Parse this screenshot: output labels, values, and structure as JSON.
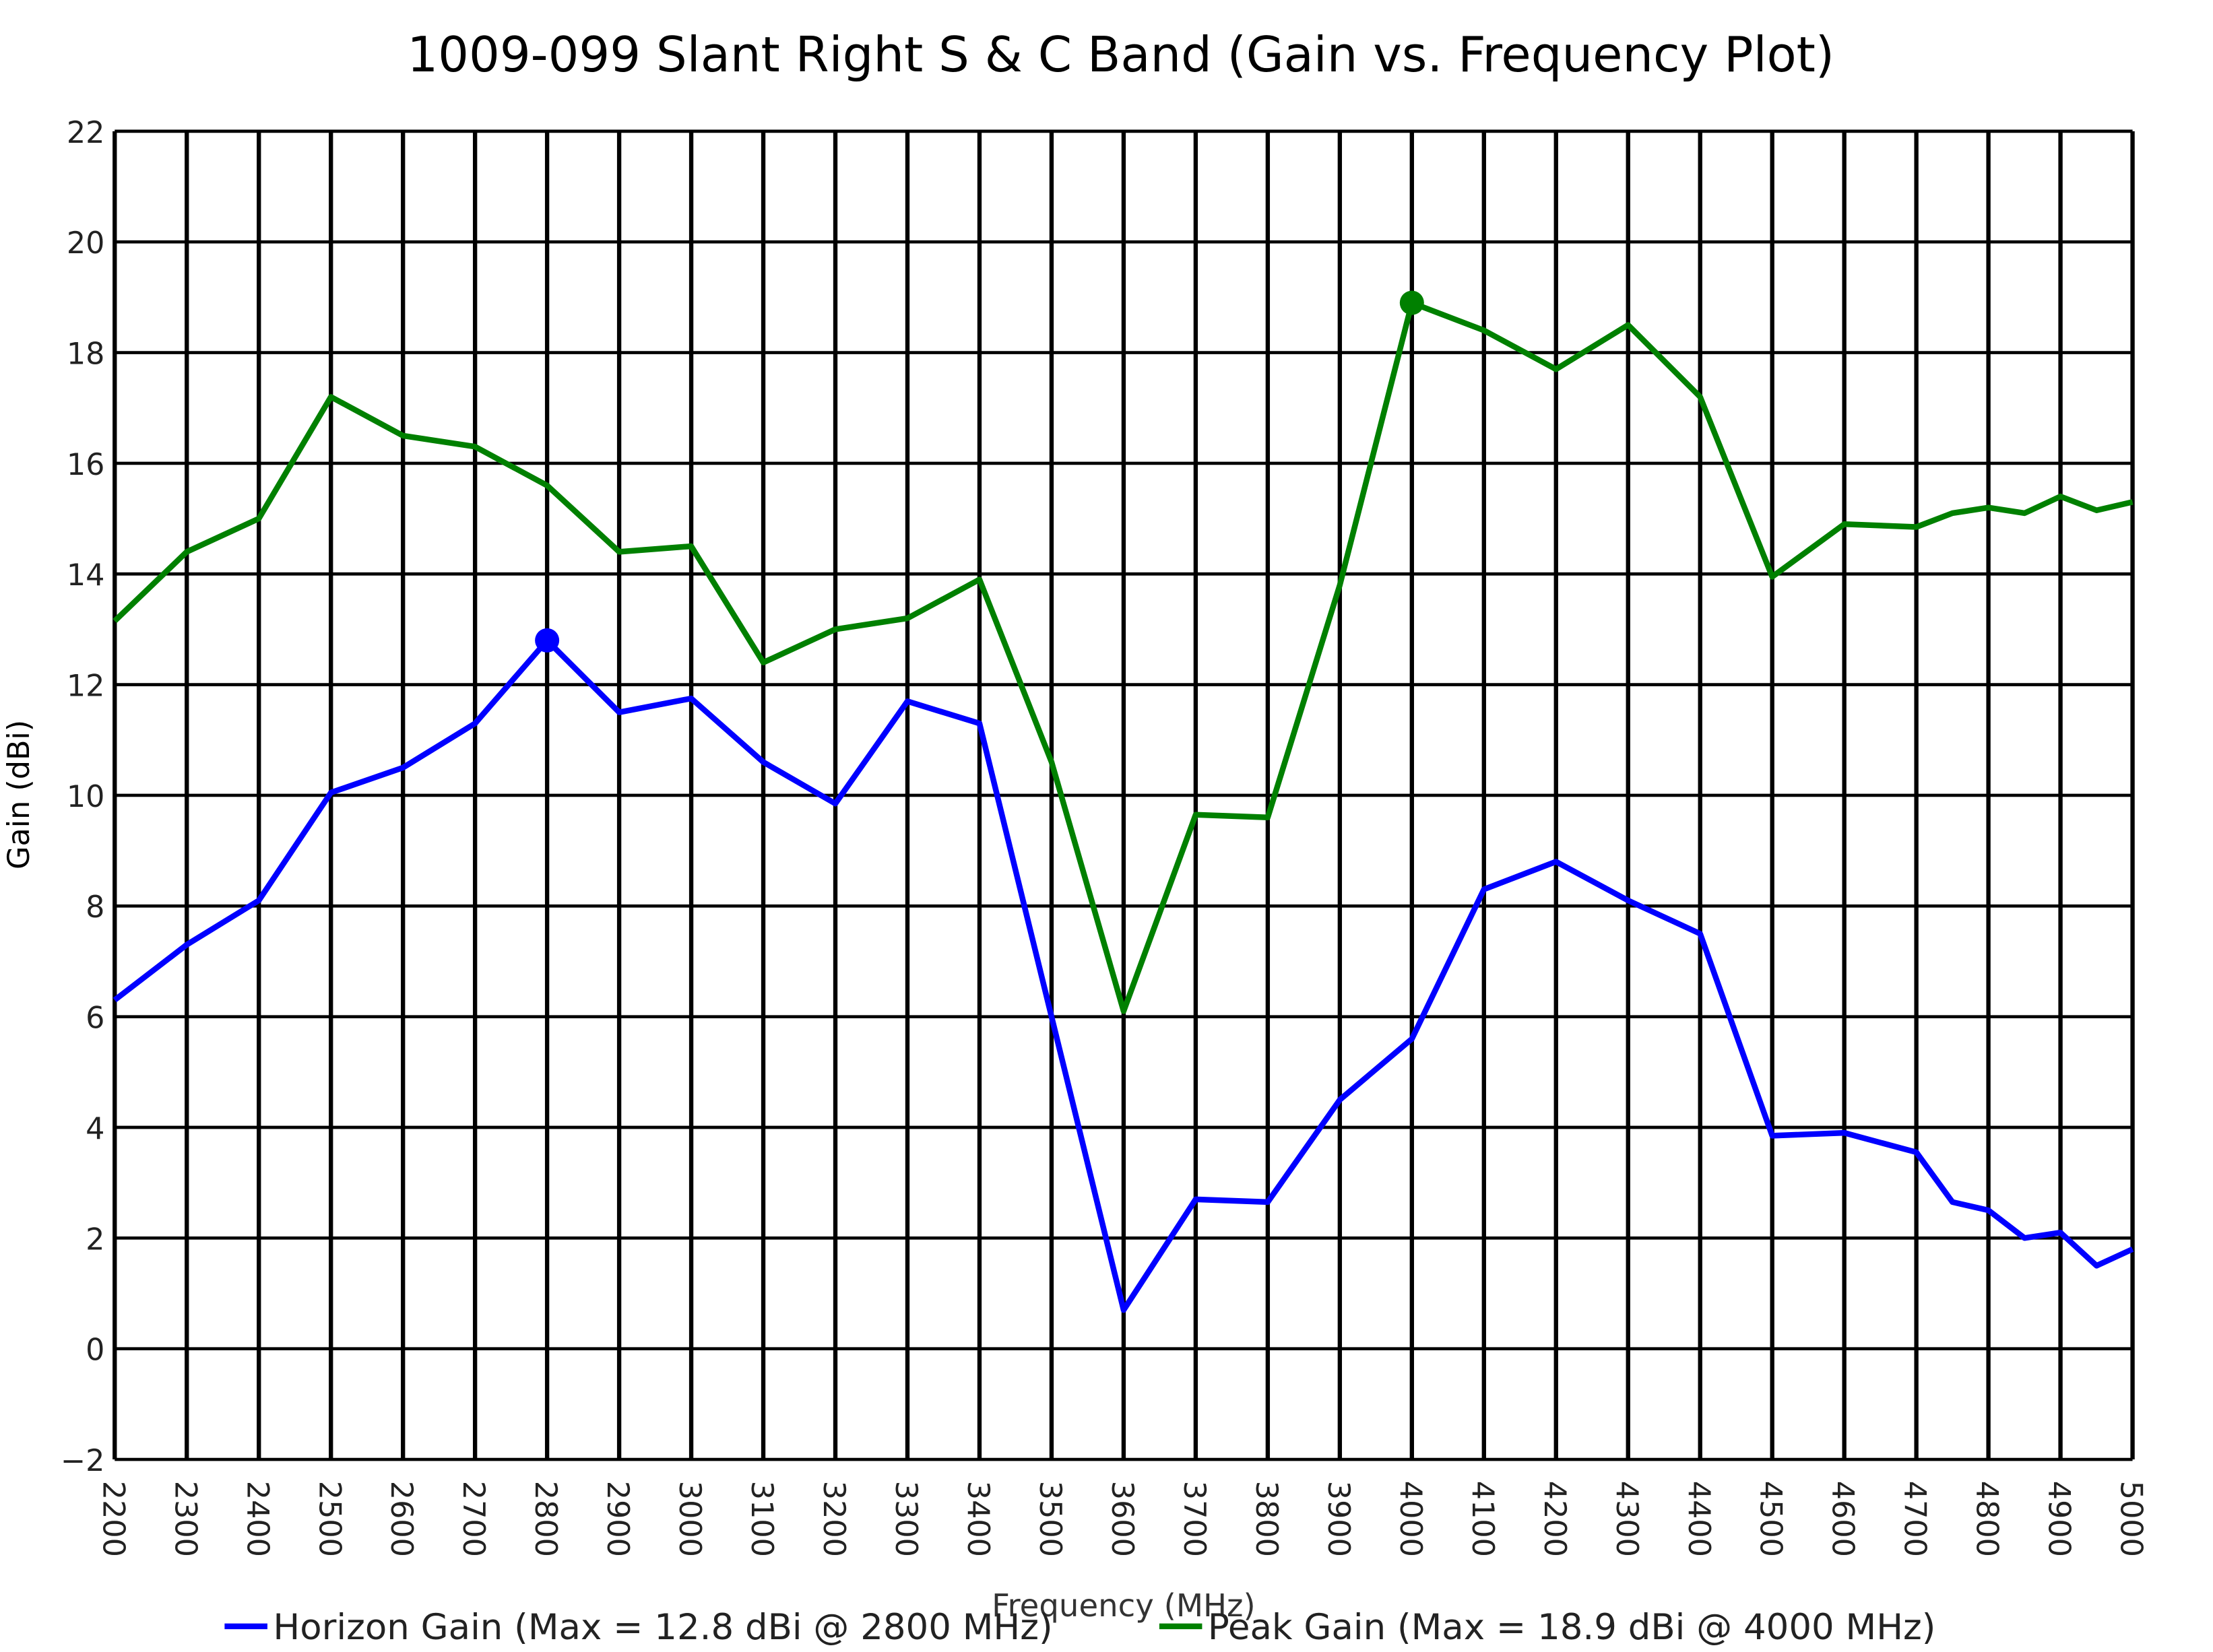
{
  "chart_data": {
    "type": "line",
    "title": "1009-099 Slant Right S & C Band (Gain vs. Frequency Plot)",
    "xlabel": "Frequency (MHz)",
    "ylabel": "Gain (dBi)",
    "xlim": [
      2200,
      5000
    ],
    "ylim": [
      -2,
      22
    ],
    "grid": true,
    "legend_position": "bottom",
    "x_ticks": [
      2200,
      2300,
      2400,
      2500,
      2600,
      2700,
      2800,
      2900,
      3000,
      3100,
      3200,
      3300,
      3400,
      3500,
      3600,
      3700,
      3800,
      3900,
      4000,
      4100,
      4200,
      4300,
      4400,
      4500,
      4600,
      4700,
      4800,
      4900,
      5000
    ],
    "y_ticks": [
      -2,
      0,
      2,
      4,
      6,
      8,
      10,
      12,
      14,
      16,
      18,
      20,
      22
    ],
    "x": [
      2200,
      2300,
      2400,
      2500,
      2600,
      2700,
      2800,
      2900,
      3000,
      3100,
      3200,
      3300,
      3400,
      3500,
      3600,
      3700,
      3800,
      3900,
      4000,
      4100,
      4200,
      4300,
      4400,
      4500,
      4600,
      4700,
      4750,
      4800,
      4850,
      4900,
      4950,
      5000
    ],
    "series": [
      {
        "name": "Horizon Gain (Max = 12.8 dBi @ 2800 MHz)",
        "color": "#0000ff",
        "values": [
          6.3,
          7.3,
          8.1,
          10.05,
          10.5,
          11.3,
          12.8,
          11.5,
          11.75,
          10.6,
          9.85,
          11.7,
          11.3,
          6.0,
          0.7,
          2.7,
          2.65,
          4.5,
          5.6,
          8.3,
          8.8,
          8.1,
          7.5,
          3.85,
          3.9,
          3.55,
          2.65,
          2.5,
          2.0,
          2.1,
          1.5,
          1.8
        ],
        "marker": {
          "x": 2800,
          "y": 12.8
        }
      },
      {
        "name": "Peak Gain (Max = 18.9 dBi @ 4000 MHz)",
        "color": "#008000",
        "values": [
          13.15,
          14.4,
          15.0,
          17.2,
          16.5,
          16.3,
          15.6,
          14.4,
          14.5,
          12.4,
          13.0,
          13.2,
          13.9,
          10.6,
          6.1,
          9.65,
          9.6,
          13.8,
          18.9,
          18.4,
          17.7,
          18.5,
          17.2,
          13.95,
          14.9,
          14.85,
          15.1,
          15.2,
          15.1,
          15.4,
          15.15,
          15.3
        ],
        "marker": {
          "x": 4000,
          "y": 18.9
        }
      }
    ]
  }
}
